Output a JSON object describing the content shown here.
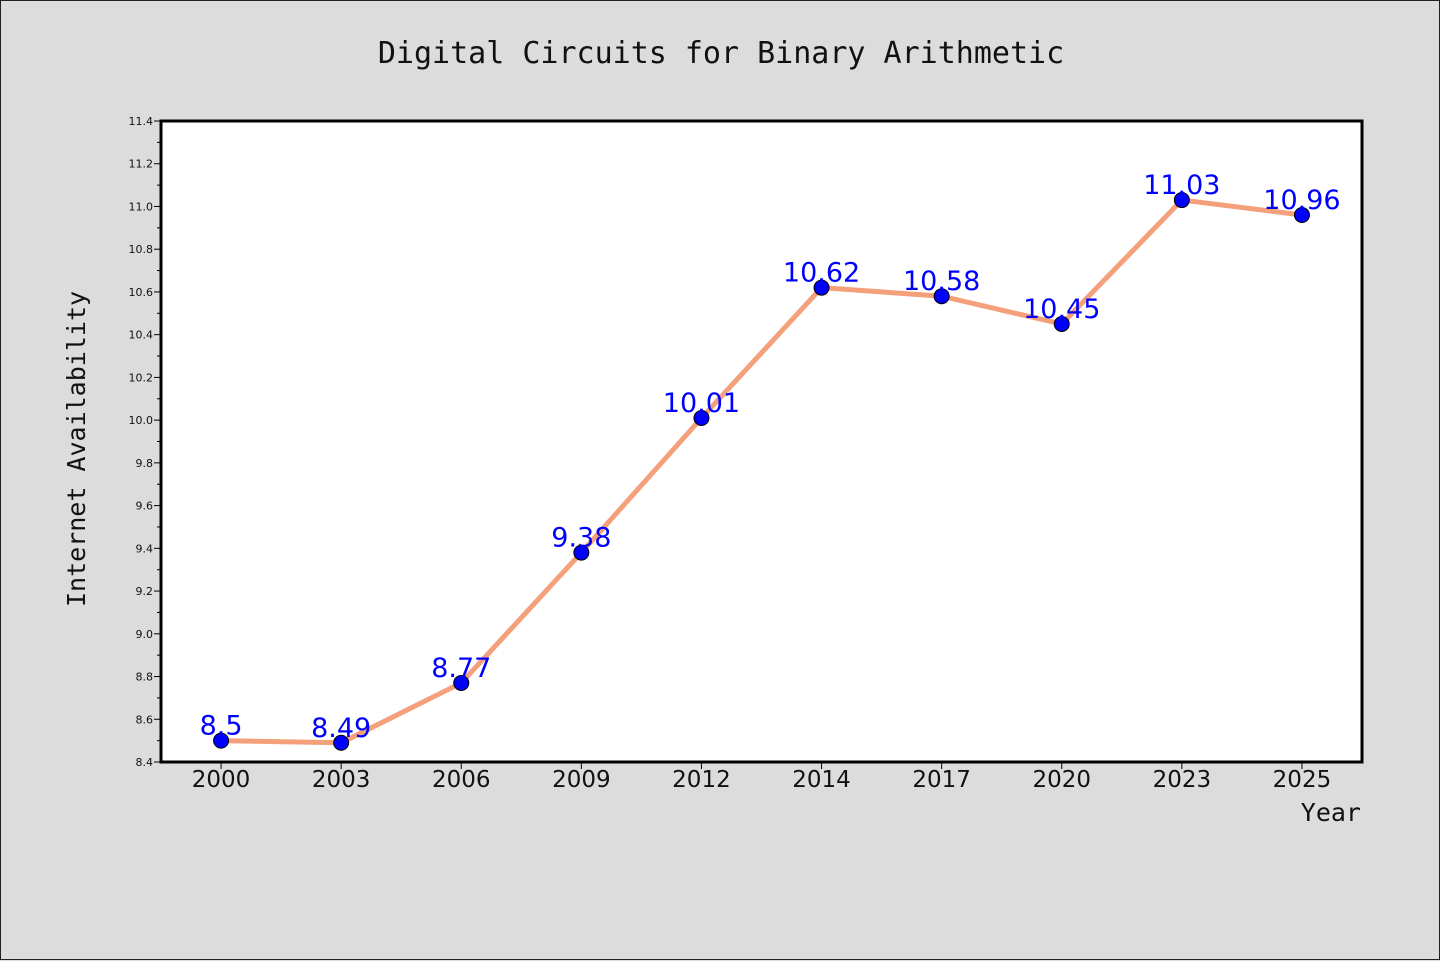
{
  "chart_data": {
    "type": "line",
    "title": "Digital Circuits for Binary Arithmetic",
    "xlabel": "Year",
    "ylabel": "Internet Availability",
    "categories": [
      "2000",
      "2003",
      "2006",
      "2009",
      "2012",
      "2014",
      "2017",
      "2020",
      "2023",
      "2025"
    ],
    "values": [
      8.5,
      8.49,
      8.77,
      9.38,
      10.01,
      10.62,
      10.58,
      10.45,
      11.03,
      10.96
    ],
    "data_labels": [
      "8.5",
      "8.49",
      "8.77",
      "9.38",
      "10.01",
      "10.62",
      "10.58",
      "10.45",
      "11.03",
      "10.96"
    ],
    "ylim": [
      8.4,
      11.4
    ],
    "yticks": [
      "8.4",
      "8.6",
      "8.8",
      "9.0",
      "9.2",
      "9.4",
      "9.6",
      "9.8",
      "10.0",
      "10.2",
      "10.4",
      "10.6",
      "10.8",
      "11.0",
      "11.2",
      "11.4"
    ],
    "grid": false,
    "legend": "none",
    "colors": {
      "line": "#f4a07a",
      "marker": "#0000ff",
      "label": "#0000ff",
      "plot_background": "#ffffff",
      "figure_background": "#dcdcdc"
    }
  }
}
